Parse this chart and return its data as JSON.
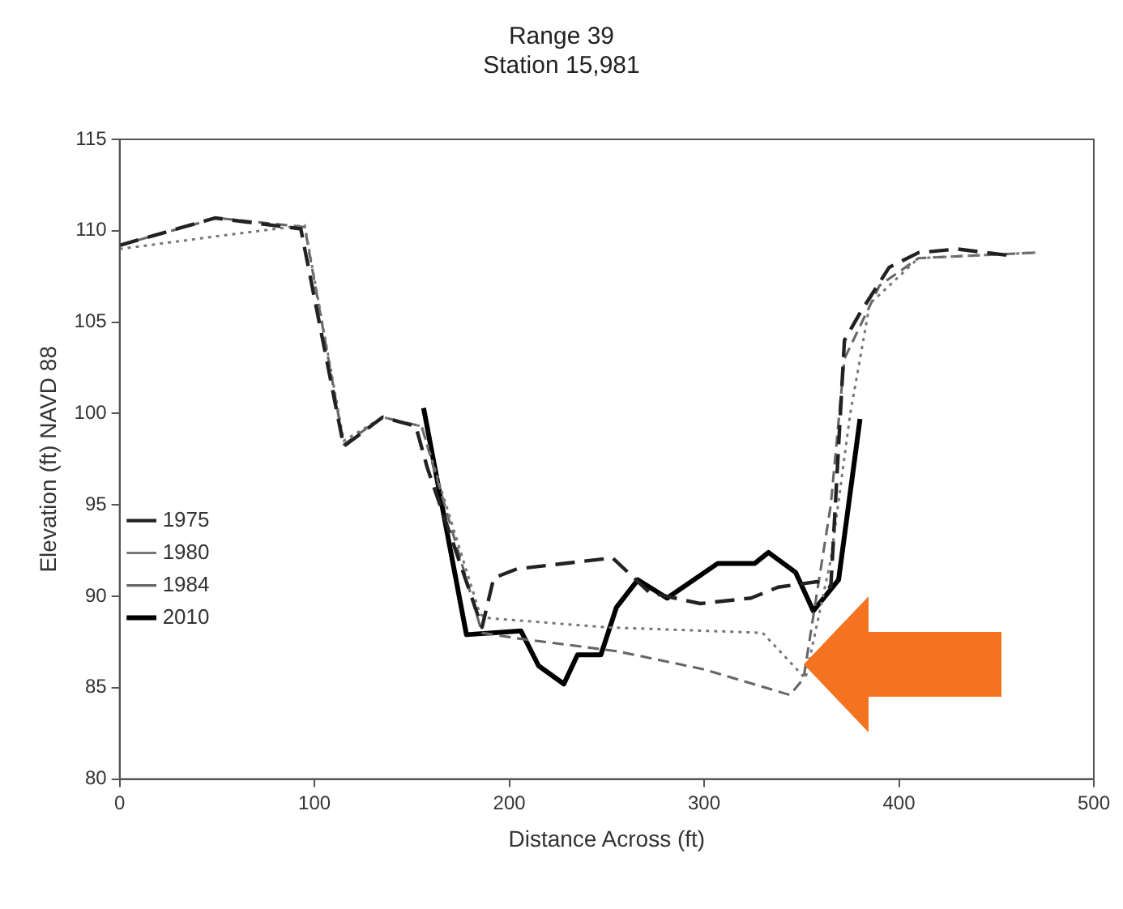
{
  "chart_data": {
    "type": "line",
    "title": "Range 39",
    "subtitle": "Station 15,981",
    "xlabel": "Distance Across (ft)",
    "ylabel": "Elevation (ft) NAVD 88",
    "xlim": [
      0,
      500
    ],
    "xticks": [
      0,
      100,
      200,
      300,
      400,
      500
    ],
    "ylim": [
      80,
      115
    ],
    "yticks": [
      80,
      85,
      90,
      95,
      100,
      105,
      110,
      115
    ],
    "legend": "bottom left",
    "marker": "none",
    "series": [
      {
        "name": "1975",
        "color": "#222222",
        "line_style": "dashed",
        "x": [
          0,
          49,
          93,
          115,
          135,
          152,
          158,
          186,
          192,
          204,
          253,
          272,
          298,
          324,
          338,
          358,
          365,
          372,
          380,
          395,
          410,
          430,
          460
        ],
        "values": [
          109.2,
          110.7,
          110.1,
          98.2,
          99.8,
          99.3,
          97,
          88.3,
          91,
          91.5,
          92.1,
          90.2,
          89.6,
          89.9,
          90.5,
          90.8,
          90.5,
          104,
          105.5,
          108,
          108.8,
          109,
          108.6
        ]
      },
      {
        "name": "1980",
        "color": "#777777",
        "line_style": "dotted",
        "x": [
          0,
          50,
          95,
          115,
          135,
          155,
          185,
          190,
          250,
          330,
          352,
          365,
          375,
          385,
          410,
          470
        ],
        "values": [
          109,
          109.7,
          110.3,
          98.5,
          99.8,
          99.3,
          89,
          88.8,
          88.3,
          88,
          85.5,
          92,
          100,
          106,
          108.5,
          108.8
        ]
      },
      {
        "name": "1984",
        "color": "#666666",
        "line_style": "dashed",
        "x": [
          0,
          50,
          95,
          115,
          135,
          155,
          186,
          204,
          255,
          300,
          344,
          351,
          365,
          372,
          390,
          410,
          470
        ],
        "values": [
          109.2,
          110.7,
          110.2,
          98.3,
          99.8,
          99.3,
          88,
          87.7,
          87,
          86,
          84.6,
          85.5,
          95,
          103,
          107,
          108.5,
          108.8
        ]
      },
      {
        "name": "2010",
        "color": "#000000",
        "line_style": "solid",
        "x": [
          156,
          178,
          206,
          215,
          228,
          235,
          247,
          255,
          266,
          281,
          307,
          326,
          333,
          347,
          356,
          369,
          380
        ],
        "values": [
          100.3,
          87.9,
          88.1,
          86.2,
          85.2,
          86.8,
          86.8,
          89.4,
          90.9,
          89.9,
          91.8,
          91.8,
          92.4,
          91.3,
          89.2,
          90.9,
          99.7
        ]
      }
    ]
  }
}
